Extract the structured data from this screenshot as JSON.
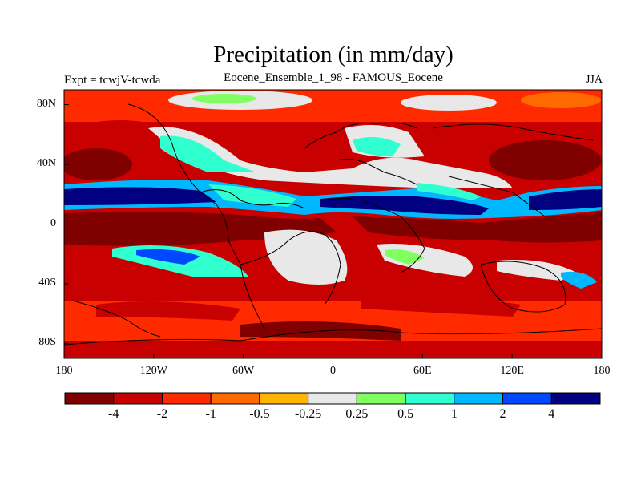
{
  "chart_data": {
    "type": "heatmap",
    "title": "Precipitation (in mm/day)",
    "subtitle_left": "Expt = tcwjV-tcwda",
    "subtitle_center": "Eocene_Ensemble_1_98 - FAMOUS_Eocene",
    "subtitle_right": "JJA",
    "x_ticks": [
      "180",
      "120W",
      "60W",
      "0",
      "60E",
      "120E",
      "180"
    ],
    "y_ticks": [
      "80N",
      "40N",
      "0",
      "40S",
      "80S"
    ],
    "xlim": [
      -180,
      180
    ],
    "ylim": [
      -90,
      90
    ],
    "colorbar": {
      "colors": [
        "#800000",
        "#c80000",
        "#ff2a00",
        "#ff6a00",
        "#ffb400",
        "#e8e8e8",
        "#80ff60",
        "#30ffd0",
        "#00b8ff",
        "#0048ff",
        "#000080"
      ],
      "labels": [
        "-4",
        "-2",
        "-1",
        "-0.5",
        "-0.25",
        "0.25",
        "0.5",
        "1",
        "2",
        "4"
      ]
    },
    "zones": [
      {
        "lat": [
          60,
          90
        ],
        "value": -1
      },
      {
        "lat": [
          30,
          60
        ],
        "value": -1
      },
      {
        "lat": [
          20,
          30
        ],
        "value": 0.5
      },
      {
        "lat": [
          6,
          18
        ],
        "value": 4
      },
      {
        "lat": [
          -2,
          6
        ],
        "value": 0.5
      },
      {
        "lat": [
          -20,
          -2
        ],
        "value": -4
      },
      {
        "lat": [
          -40,
          -20
        ],
        "value": -1
      },
      {
        "lat": [
          -90,
          -40
        ],
        "value": -2
      }
    ]
  }
}
